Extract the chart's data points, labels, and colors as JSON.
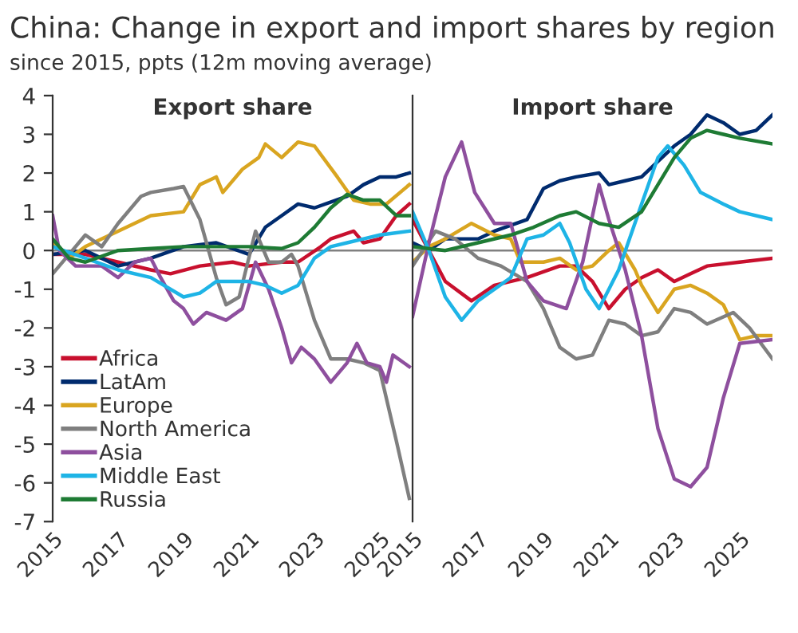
{
  "chart_data": [
    {
      "type": "line",
      "title": "Export share",
      "annotations": [
        "China: Change in export and import shares by region",
        "since 2015, ppts (12m moving average)"
      ],
      "xlim": [
        2015,
        2026
      ],
      "xticks": [
        2015,
        2017,
        2019,
        2021,
        2023,
        2025
      ],
      "ylim": [
        -7,
        4
      ],
      "yticks": [
        -7,
        -6,
        -5,
        -4,
        -3,
        -2,
        -1,
        0,
        1,
        2,
        3,
        4
      ],
      "grid": false,
      "legend": "bottom left",
      "ref_lines": [
        {
          "axis": "y",
          "value": 0,
          "color": "#808080"
        }
      ],
      "series": [
        {
          "name": "Africa",
          "color": "#c8102e",
          "x": [
            2015,
            2016,
            2017,
            2018,
            2018.6,
            2019.5,
            2020.5,
            2021,
            2022,
            2022.5,
            2023.2,
            2023.5,
            2024.2,
            2024.5,
            2025,
            2025.5,
            2025.9
          ],
          "values": [
            -0.1,
            -0.1,
            -0.3,
            -0.5,
            -0.6,
            -0.4,
            -0.3,
            -0.4,
            -0.3,
            -0.3,
            0.1,
            0.3,
            0.5,
            0.2,
            0.3,
            0.9,
            1.2
          ]
        },
        {
          "name": "LatAm",
          "color": "#002b6e",
          "x": [
            2015,
            2016,
            2017,
            2018,
            2019,
            2020,
            2021,
            2021.5,
            2022,
            2022.5,
            2023,
            2024,
            2024.5,
            2025,
            2025.5,
            2025.9
          ],
          "values": [
            -0.1,
            0,
            -0.4,
            -0.2,
            0.1,
            0.2,
            -0.1,
            0.6,
            0.9,
            1.2,
            1.1,
            1.4,
            1.7,
            1.9,
            1.9,
            2.0
          ]
        },
        {
          "name": "Europe",
          "color": "#d9a520",
          "x": [
            2015,
            2015.5,
            2016,
            2017,
            2018,
            2019,
            2019.5,
            2020,
            2020.2,
            2020.8,
            2021.3,
            2021.5,
            2022,
            2022.5,
            2023,
            2023.7,
            2024.2,
            2024.7,
            2025.2,
            2025.9
          ],
          "values": [
            0.2,
            -0.2,
            0.1,
            0.5,
            0.9,
            1.0,
            1.7,
            1.9,
            1.5,
            2.1,
            2.4,
            2.75,
            2.4,
            2.8,
            2.7,
            1.9,
            1.3,
            1.2,
            1.2,
            1.7
          ]
        },
        {
          "name": "North America",
          "color": "#7f7f7f",
          "x": [
            2015,
            2015.5,
            2016,
            2016.5,
            2017,
            2017.7,
            2018,
            2018.7,
            2019,
            2019.5,
            2020,
            2020.3,
            2020.7,
            2021.2,
            2021.6,
            2022,
            2022.3,
            2022.5,
            2023,
            2023.5,
            2024,
            2024.5,
            2025,
            2025.5,
            2025.9
          ],
          "values": [
            -0.6,
            -0.1,
            0.4,
            0.1,
            0.7,
            1.4,
            1.5,
            1.6,
            1.65,
            0.8,
            -0.7,
            -1.4,
            -1.2,
            0.5,
            -0.3,
            -0.3,
            -0.1,
            -0.4,
            -1.8,
            -2.8,
            -2.8,
            -2.9,
            -3.1,
            -4.9,
            -6.4
          ]
        },
        {
          "name": "Asia",
          "color": "#8e4f9e",
          "x": [
            2015,
            2015.2,
            2015.7,
            2016.5,
            2017,
            2017.5,
            2018,
            2018.3,
            2018.7,
            2019,
            2019.3,
            2019.7,
            2020.3,
            2020.8,
            2021.2,
            2021.6,
            2022,
            2022.3,
            2022.6,
            2023,
            2023.5,
            2024,
            2024.3,
            2024.6,
            2025,
            2025.2,
            2025.4,
            2025.9
          ],
          "values": [
            0.9,
            0.0,
            -0.4,
            -0.4,
            -0.7,
            -0.3,
            -0.2,
            -0.7,
            -1.3,
            -1.5,
            -1.9,
            -1.6,
            -1.8,
            -1.5,
            -0.3,
            -1.0,
            -2.0,
            -2.9,
            -2.5,
            -2.8,
            -3.4,
            -2.9,
            -2.4,
            -2.9,
            -3.0,
            -3.4,
            -2.7,
            -3.0
          ]
        },
        {
          "name": "Middle East",
          "color": "#1eb4e6",
          "x": [
            2015,
            2016,
            2017,
            2018,
            2019,
            2019.5,
            2020,
            2021,
            2021.5,
            2022,
            2022.5,
            2023,
            2023.5,
            2024,
            2024.5,
            2025,
            2025.9
          ],
          "values": [
            0.1,
            -0.2,
            -0.5,
            -0.7,
            -1.2,
            -1.1,
            -0.8,
            -0.8,
            -0.9,
            -1.1,
            -0.9,
            -0.2,
            0.1,
            0.2,
            0.3,
            0.4,
            0.5
          ]
        },
        {
          "name": "Russia",
          "color": "#1e7b34",
          "x": [
            2015,
            2015.5,
            2016,
            2017,
            2018,
            2019,
            2020,
            2021,
            2022,
            2022.5,
            2023,
            2023.5,
            2024,
            2024.5,
            2025,
            2025.5,
            2025.9
          ],
          "values": [
            0.3,
            -0.2,
            -0.3,
            0.0,
            0.05,
            0.1,
            0.1,
            0.1,
            0.05,
            0.2,
            0.6,
            1.1,
            1.45,
            1.3,
            1.3,
            0.9,
            0.9
          ]
        }
      ]
    },
    {
      "type": "line",
      "title": "Import share",
      "xlim": [
        2015,
        2026
      ],
      "xticks": [
        2015,
        2017,
        2019,
        2021,
        2023,
        2025
      ],
      "ylim": [
        -7,
        4
      ],
      "tick_labels": "x",
      "grid": false,
      "ref_lines": [
        {
          "axis": "y",
          "value": 0,
          "color": "#808080"
        }
      ],
      "series": [
        {
          "color": "#c8102e",
          "x": [
            2015,
            2015.5,
            2016,
            2016.8,
            2017.5,
            2018.5,
            2019.5,
            2020,
            2020.5,
            2021,
            2021.5,
            2022,
            2022.5,
            2023,
            2023.5,
            2024,
            2025,
            2026
          ],
          "values": [
            0.8,
            0.0,
            -0.8,
            -1.3,
            -0.9,
            -0.7,
            -0.4,
            -0.4,
            -0.8,
            -1.5,
            -1.0,
            -0.7,
            -0.5,
            -0.8,
            -0.6,
            -0.4,
            -0.3,
            -0.2
          ]
        },
        {
          "color": "#002b6e",
          "x": [
            2015,
            2015.5,
            2016,
            2017,
            2017.5,
            2018.5,
            2019,
            2019.5,
            2020,
            2020.7,
            2021,
            2021.5,
            2022,
            2022.5,
            2023,
            2023.5,
            2024,
            2024.5,
            2025,
            2025.5,
            2026
          ],
          "values": [
            0.2,
            0.0,
            0.3,
            0.3,
            0.5,
            0.8,
            1.6,
            1.8,
            1.9,
            2.0,
            1.7,
            1.8,
            1.9,
            2.3,
            2.7,
            3.0,
            3.5,
            3.3,
            3.0,
            3.1,
            3.5
          ]
        },
        {
          "color": "#d9a520",
          "x": [
            2015,
            2015.5,
            2016,
            2016.8,
            2017.5,
            2018,
            2018.3,
            2019,
            2019.5,
            2020,
            2020.5,
            2021,
            2021.3,
            2021.8,
            2022,
            2022.5,
            2023,
            2023.5,
            2024,
            2024.5,
            2025,
            2025.5,
            2026
          ],
          "values": [
            -0.3,
            0.1,
            0.3,
            0.7,
            0.4,
            0.3,
            -0.3,
            -0.3,
            -0.2,
            -0.5,
            -0.4,
            0.0,
            0.2,
            -0.5,
            -0.9,
            -1.6,
            -1.0,
            -0.9,
            -1.1,
            -1.4,
            -2.3,
            -2.2,
            -2.2
          ]
        },
        {
          "color": "#7f7f7f",
          "x": [
            2015,
            2015.7,
            2016.3,
            2017,
            2017.7,
            2018.5,
            2019,
            2019.5,
            2020,
            2020.5,
            2021,
            2021.5,
            2022,
            2022.5,
            2023,
            2023.5,
            2024,
            2024.8,
            2025.3,
            2026
          ],
          "values": [
            -0.4,
            0.5,
            0.3,
            -0.2,
            -0.4,
            -0.8,
            -1.5,
            -2.5,
            -2.8,
            -2.7,
            -1.8,
            -1.9,
            -2.2,
            -2.1,
            -1.5,
            -1.6,
            -1.9,
            -1.6,
            -2.0,
            -2.8
          ]
        },
        {
          "color": "#8e4f9e",
          "x": [
            2015,
            2015.5,
            2016,
            2016.5,
            2016.9,
            2017.5,
            2018,
            2018.5,
            2019,
            2019.7,
            2020.2,
            2020.7,
            2021,
            2021.5,
            2022,
            2022.5,
            2023,
            2023.5,
            2024,
            2024.5,
            2025,
            2026
          ],
          "values": [
            -1.7,
            0.2,
            1.9,
            2.8,
            1.5,
            0.7,
            0.7,
            -0.8,
            -1.3,
            -1.5,
            -0.3,
            1.7,
            0.8,
            -0.5,
            -2.2,
            -4.6,
            -5.9,
            -6.1,
            -5.6,
            -3.8,
            -2.4,
            -2.3
          ]
        },
        {
          "color": "#1eb4e6",
          "x": [
            2015,
            2015.5,
            2016,
            2016.5,
            2017,
            2018,
            2018.5,
            2019,
            2019.5,
            2019.8,
            2020.3,
            2020.7,
            2021.3,
            2022,
            2022.5,
            2022.8,
            2023.3,
            2023.8,
            2024.5,
            2025,
            2026
          ],
          "values": [
            1.0,
            0.0,
            -1.2,
            -1.8,
            -1.3,
            -0.7,
            0.3,
            0.4,
            0.7,
            0.2,
            -1.0,
            -1.5,
            -0.5,
            1.2,
            2.4,
            2.7,
            2.2,
            1.5,
            1.2,
            1.0,
            0.8
          ]
        },
        {
          "color": "#1e7b34",
          "x": [
            2015,
            2016,
            2017,
            2018,
            2018.7,
            2019.5,
            2020,
            2020.7,
            2021.3,
            2022,
            2022.5,
            2023,
            2023.5,
            2024,
            2024.5,
            2025,
            2026
          ],
          "values": [
            0.1,
            0.0,
            0.2,
            0.4,
            0.6,
            0.9,
            1.0,
            0.7,
            0.6,
            1.0,
            1.7,
            2.4,
            2.9,
            3.1,
            3.0,
            2.9,
            2.75
          ]
        }
      ]
    }
  ]
}
